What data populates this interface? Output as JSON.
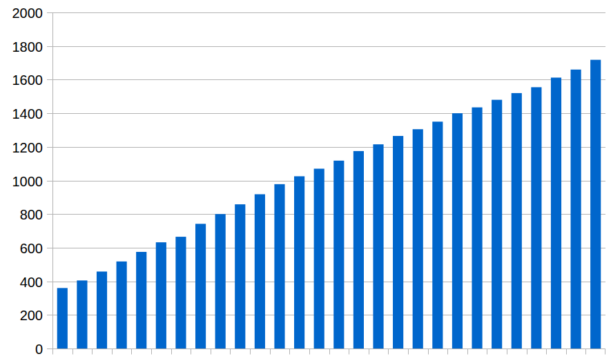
{
  "chart_data": {
    "type": "bar",
    "categories": [
      null,
      null,
      null,
      null,
      null,
      null,
      null,
      null,
      null,
      null,
      null,
      null,
      null,
      null,
      null,
      null,
      null,
      null,
      null,
      null,
      null,
      null,
      null,
      null,
      null,
      null,
      null,
      null
    ],
    "values": [
      360,
      405,
      458,
      518,
      575,
      632,
      665,
      742,
      800,
      858,
      918,
      978,
      1025,
      1070,
      1118,
      1175,
      1215,
      1265,
      1305,
      1350,
      1400,
      1435,
      1480,
      1520,
      1555,
      1612,
      1660,
      1718
    ],
    "color": "#0066cc",
    "ylim": [
      0,
      2000
    ],
    "yticks": [
      0,
      200,
      400,
      600,
      800,
      1000,
      1200,
      1400,
      1600,
      1800,
      2000
    ],
    "grid": true,
    "tick_labels": "y"
  }
}
